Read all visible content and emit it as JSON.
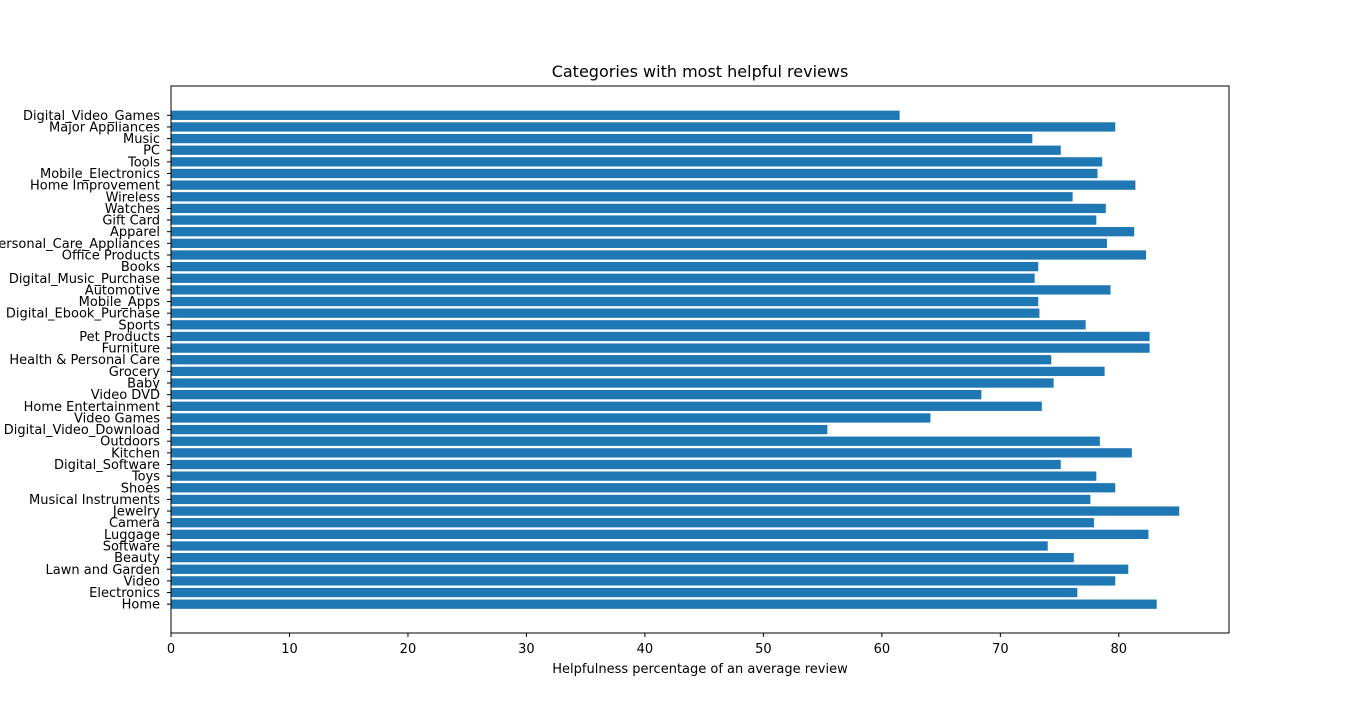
{
  "chart_data": {
    "type": "bar",
    "orientation": "horizontal",
    "title": "Categories with most helpful reviews",
    "xlabel": "Helpfulness percentage of an average review",
    "ylabel": "",
    "xlim": [
      0,
      89.3
    ],
    "x_ticks": [
      0,
      10,
      20,
      30,
      40,
      50,
      60,
      70,
      80
    ],
    "grid": false,
    "bar_color": "#1f77b4",
    "categories": [
      "Digital_Video_Games",
      "Major Appliances",
      "Music",
      "PC",
      "Tools",
      "Mobile_Electronics",
      "Home Improvement",
      "Wireless",
      "Watches",
      "Gift Card",
      "Apparel",
      "Personal_Care_Appliances",
      "Office Products",
      "Books",
      "Digital_Music_Purchase",
      "Automotive",
      "Mobile_Apps",
      "Digital_Ebook_Purchase",
      "Sports",
      "Pet Products",
      "Furniture",
      "Health & Personal Care",
      "Grocery",
      "Baby",
      "Video DVD",
      "Home Entertainment",
      "Video Games",
      "Digital_Video_Download",
      "Outdoors",
      "Kitchen",
      "Digital_Software",
      "Toys",
      "Shoes",
      "Musical Instruments",
      "Jewelry",
      "Camera",
      "Luggage",
      "Software",
      "Beauty",
      "Lawn and Garden",
      "Video",
      "Electronics",
      "Home"
    ],
    "values": [
      61.5,
      79.7,
      72.7,
      75.1,
      78.6,
      78.2,
      81.4,
      76.1,
      78.9,
      78.1,
      81.3,
      79.0,
      82.3,
      73.2,
      72.9,
      79.3,
      73.2,
      73.3,
      77.2,
      82.6,
      82.6,
      74.3,
      78.8,
      74.5,
      68.4,
      73.5,
      64.1,
      55.4,
      78.4,
      81.1,
      75.1,
      78.1,
      79.7,
      77.6,
      85.1,
      77.9,
      82.5,
      74.0,
      76.2,
      80.8,
      79.7,
      76.5,
      83.2
    ]
  }
}
